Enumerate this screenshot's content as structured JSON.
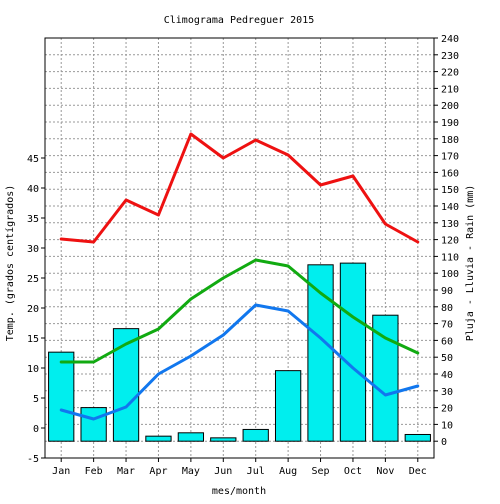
{
  "chart_data": {
    "type": "bar",
    "title": "Climograma Pedreguer 2015",
    "xlabel": "mes/month",
    "ylabel_left": "Temp. (grados centígrados)",
    "ylabel_right": "Pluja - Lluvia - Rain (mm)",
    "categories": [
      "Jan",
      "Feb",
      "Mar",
      "Apr",
      "May",
      "Jun",
      "Jul",
      "Aug",
      "Sep",
      "Oct",
      "Nov",
      "Dec"
    ],
    "left_axis": {
      "min": -5,
      "max": 45,
      "ticks": [
        -5,
        0,
        5,
        10,
        15,
        20,
        25,
        30,
        35,
        40,
        45
      ]
    },
    "right_axis": {
      "min": -10,
      "max": 240,
      "ticks": [
        0,
        10,
        20,
        30,
        40,
        50,
        60,
        70,
        80,
        90,
        100,
        110,
        120,
        130,
        140,
        150,
        160,
        170,
        180,
        190,
        200,
        210,
        220,
        230,
        240
      ]
    },
    "grid": true,
    "series": [
      {
        "kind": "bar",
        "axis": "right",
        "color": "#00eeee",
        "values": [
          53,
          20,
          67,
          3,
          5,
          2,
          7,
          42,
          105,
          106,
          75,
          4
        ]
      },
      {
        "kind": "line",
        "axis": "left",
        "color": "#ee1111",
        "values": [
          31.5,
          31,
          38,
          35.5,
          49,
          45,
          48,
          45.5,
          40.5,
          42,
          34,
          31
        ]
      },
      {
        "kind": "line",
        "axis": "left",
        "color": "#11aa11",
        "values": [
          11,
          11,
          14,
          16.5,
          21.5,
          25,
          28,
          27,
          22.5,
          18.5,
          15,
          12.5
        ]
      },
      {
        "kind": "line",
        "axis": "left",
        "color": "#1177ee",
        "values": [
          3,
          1.5,
          3.5,
          9,
          12,
          15.5,
          20.5,
          19.5,
          15,
          10,
          5.5,
          7
        ]
      }
    ]
  }
}
